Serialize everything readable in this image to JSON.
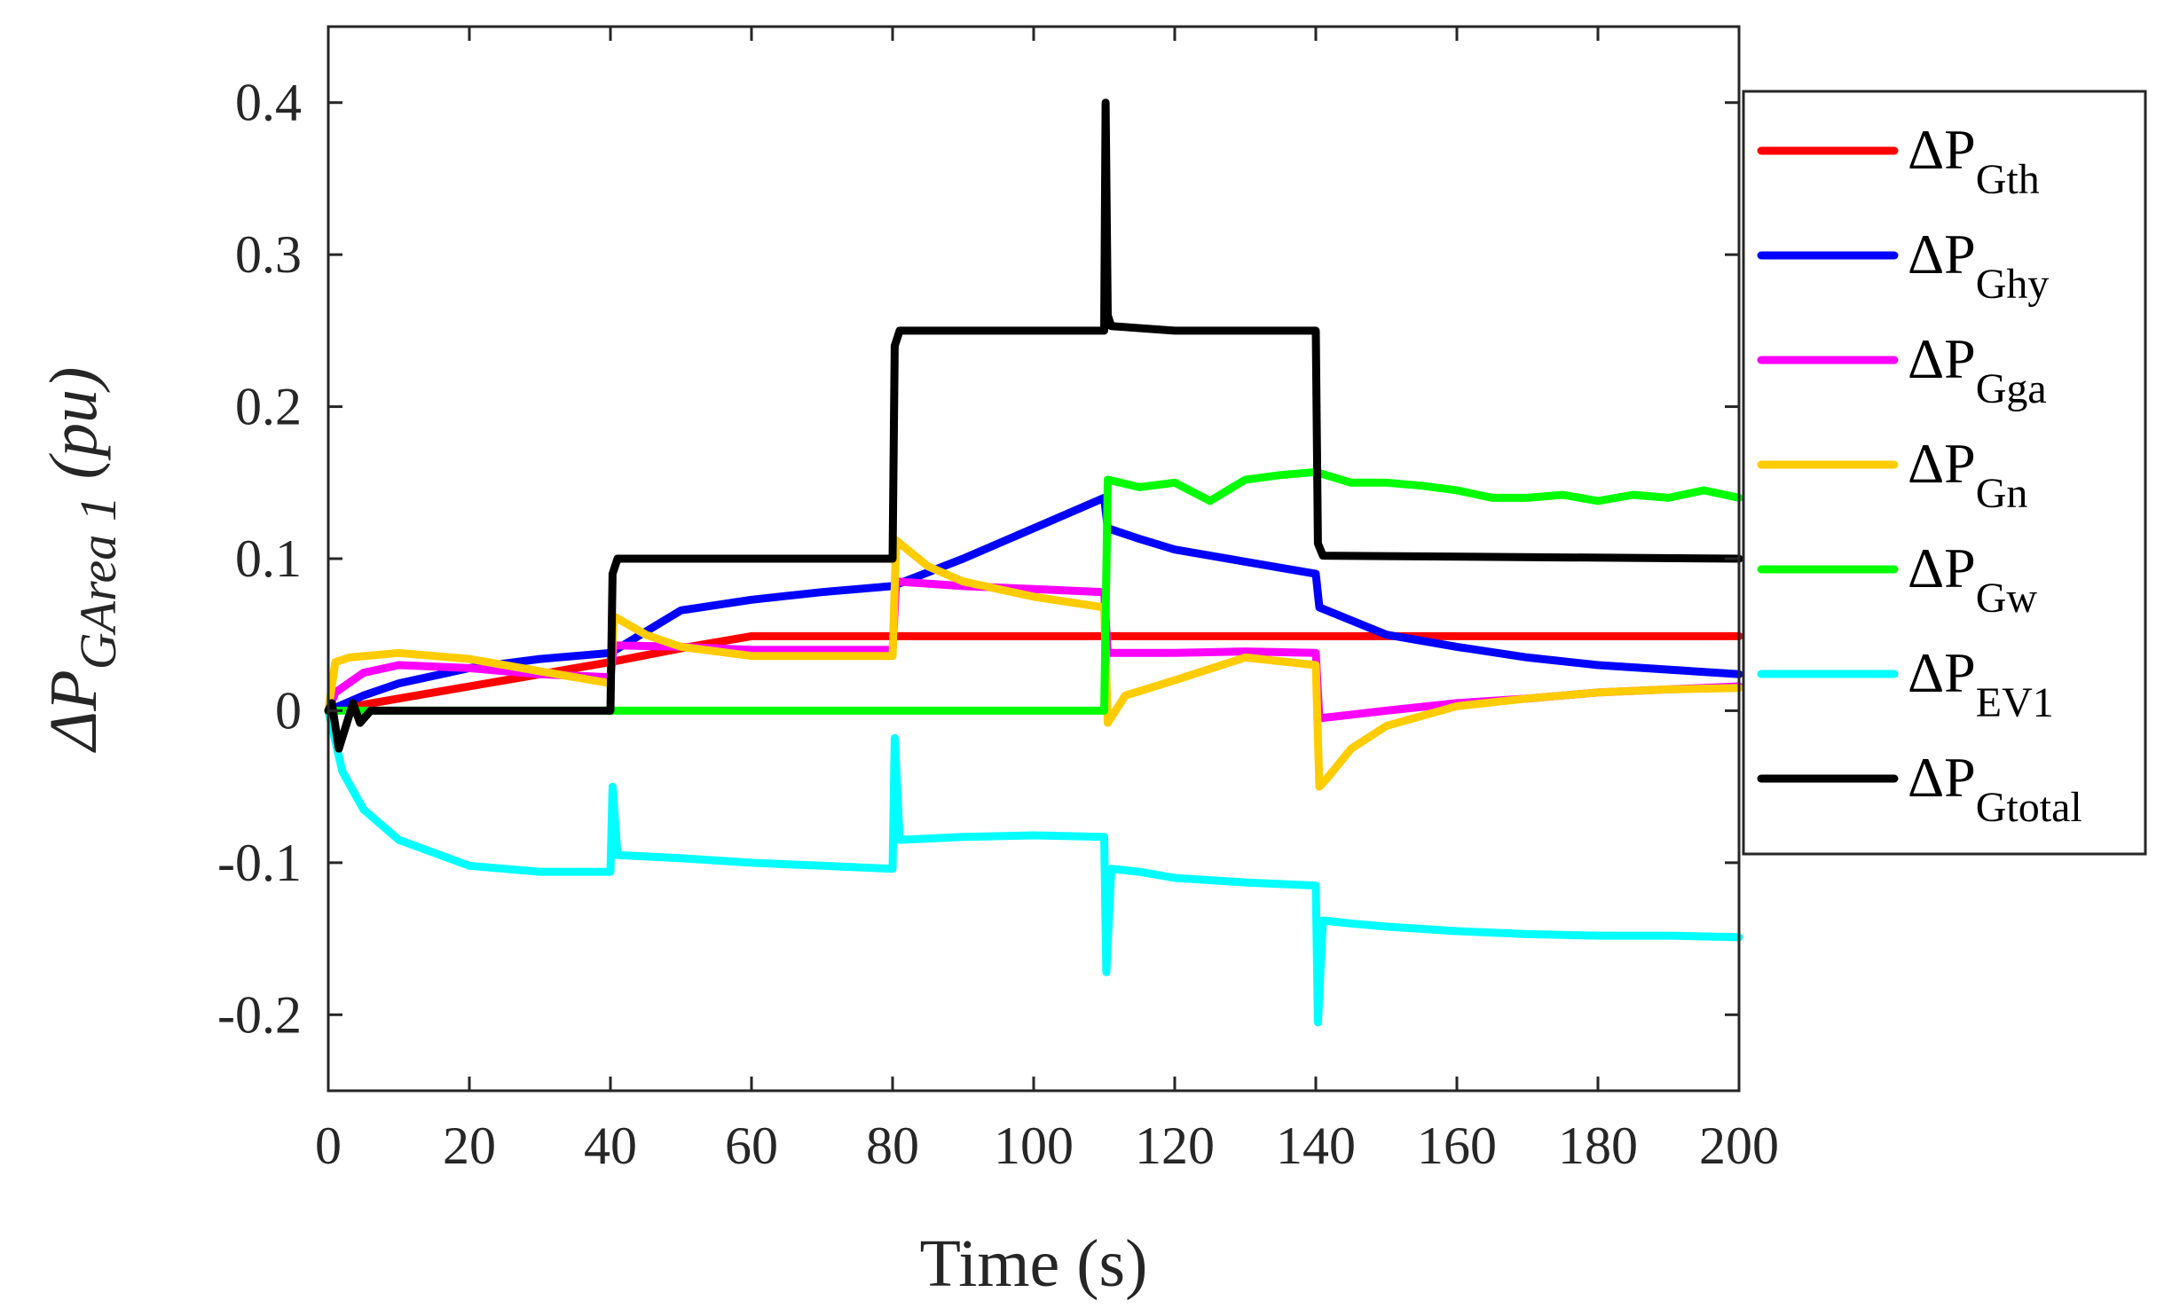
{
  "chart_data": {
    "type": "line",
    "title": "",
    "xlabel": "Time (s)",
    "ylabel": {
      "base": "ΔP",
      "subscript": "GArea 1",
      "suffix": " (pu)"
    },
    "xlim": [
      0,
      200
    ],
    "ylim": [
      -0.25,
      0.45
    ],
    "xticks": [
      0,
      20,
      40,
      60,
      80,
      100,
      120,
      140,
      160,
      180,
      200
    ],
    "yticks": [
      -0.2,
      -0.1,
      0,
      0.1,
      0.2,
      0.3,
      0.4
    ],
    "xtick_labels": [
      "0",
      "20",
      "40",
      "60",
      "80",
      "100",
      "120",
      "140",
      "160",
      "180",
      "200"
    ],
    "ytick_labels": [
      "-0.2",
      "-0.1",
      "0",
      "0.1",
      "0.2",
      "0.3",
      "0.4"
    ],
    "grid": false,
    "legend_position": "outside-right",
    "series": [
      {
        "name": "ΔP_Gth",
        "label_base": "ΔP",
        "label_sub": "Gth",
        "color": "#ff0000",
        "x": [
          0,
          10,
          20,
          30,
          40,
          50,
          60,
          200
        ],
        "y": [
          0,
          0.008,
          0.016,
          0.024,
          0.032,
          0.041,
          0.049,
          0.049
        ]
      },
      {
        "name": "ΔP_Ghy",
        "label_base": "ΔP",
        "label_sub": "Ghy",
        "color": "#0000ff",
        "x": [
          0,
          2,
          5,
          10,
          20,
          30,
          40,
          50,
          60,
          70,
          80,
          90,
          100,
          110,
          110.5,
          115,
          120,
          130,
          140,
          140.5,
          150,
          160,
          170,
          180,
          190,
          200
        ],
        "y": [
          0,
          0.004,
          0.01,
          0.018,
          0.028,
          0.034,
          0.038,
          0.066,
          0.073,
          0.078,
          0.082,
          0.1,
          0.12,
          0.14,
          0.12,
          0.113,
          0.106,
          0.098,
          0.09,
          0.068,
          0.05,
          0.042,
          0.035,
          0.03,
          0.027,
          0.024
        ]
      },
      {
        "name": "ΔP_Gga",
        "label_base": "ΔP",
        "label_sub": "Gga",
        "color": "#ff00ff",
        "x": [
          0,
          1,
          5,
          10,
          20,
          30,
          40,
          40.5,
          50,
          60,
          70,
          80,
          80.5,
          90,
          100,
          110,
          110.5,
          120,
          130,
          140,
          140.5,
          150,
          160,
          170,
          180,
          190,
          200
        ],
        "y": [
          0,
          0.012,
          0.025,
          0.03,
          0.028,
          0.024,
          0.022,
          0.043,
          0.042,
          0.04,
          0.04,
          0.04,
          0.085,
          0.082,
          0.08,
          0.078,
          0.038,
          0.038,
          0.039,
          0.038,
          -0.005,
          0,
          0.005,
          0.008,
          0.012,
          0.014,
          0.016
        ]
      },
      {
        "name": "ΔP_Gn",
        "label_base": "ΔP",
        "label_sub": "Gn",
        "color": "#ffcc00",
        "x": [
          0,
          1,
          3,
          10,
          20,
          30,
          40,
          40.5,
          45,
          50,
          60,
          70,
          80,
          80.5,
          85,
          90,
          100,
          110,
          110.5,
          113,
          120,
          130,
          140,
          140.5,
          141.5,
          145,
          150,
          160,
          170,
          180,
          190,
          200
        ],
        "y": [
          0,
          0.032,
          0.035,
          0.038,
          0.034,
          0.026,
          0.018,
          0.062,
          0.05,
          0.042,
          0.036,
          0.036,
          0.036,
          0.112,
          0.095,
          0.085,
          0.075,
          0.068,
          -0.008,
          0.01,
          0.02,
          0.035,
          0.03,
          -0.05,
          -0.045,
          -0.025,
          -0.01,
          0.003,
          0.008,
          0.012,
          0.014,
          0.015
        ]
      },
      {
        "name": "ΔP_Gw",
        "label_base": "ΔP",
        "label_sub": "Gw",
        "color": "#00ff00",
        "x": [
          0,
          110,
          110.5,
          115,
          120,
          125,
          130,
          135,
          140,
          145,
          150,
          155,
          160,
          165,
          170,
          175,
          180,
          185,
          190,
          195,
          200
        ],
        "y": [
          0,
          0,
          0.152,
          0.147,
          0.15,
          0.138,
          0.152,
          0.155,
          0.157,
          0.15,
          0.15,
          0.148,
          0.145,
          0.14,
          0.14,
          0.142,
          0.138,
          0.142,
          0.14,
          0.145,
          0.14
        ]
      },
      {
        "name": "ΔP_EV1",
        "label_base": "ΔP",
        "label_sub": "EV1",
        "color": "#00ffff",
        "x": [
          0,
          2,
          5,
          10,
          20,
          30,
          40,
          40.3,
          41,
          50,
          60,
          70,
          80,
          80.3,
          81,
          90,
          100,
          110,
          110.3,
          111,
          115,
          120,
          130,
          140,
          140.3,
          141,
          145,
          150,
          160,
          170,
          180,
          190,
          200
        ],
        "y": [
          0,
          -0.04,
          -0.065,
          -0.085,
          -0.102,
          -0.106,
          -0.106,
          -0.05,
          -0.095,
          -0.097,
          -0.1,
          -0.102,
          -0.104,
          -0.018,
          -0.085,
          -0.083,
          -0.082,
          -0.083,
          -0.172,
          -0.104,
          -0.106,
          -0.11,
          -0.113,
          -0.115,
          -0.205,
          -0.138,
          -0.14,
          -0.142,
          -0.145,
          -0.147,
          -0.148,
          -0.148,
          -0.149
        ]
      },
      {
        "name": "ΔP_Gtotal",
        "label_base": "ΔP",
        "label_sub": "Gtotal",
        "color": "#000000",
        "x": [
          0,
          0.5,
          1.5,
          2.5,
          3.5,
          4.5,
          6,
          10,
          40,
          40.3,
          41,
          80,
          80.3,
          81,
          110,
          110.2,
          110.5,
          111,
          120,
          140,
          140.3,
          141,
          200
        ],
        "y": [
          0,
          0.005,
          -0.025,
          -0.01,
          0.005,
          -0.008,
          0,
          0,
          0,
          0.09,
          0.1,
          0.1,
          0.24,
          0.25,
          0.25,
          0.4,
          0.26,
          0.253,
          0.25,
          0.25,
          0.11,
          0.102,
          0.1
        ]
      }
    ]
  }
}
